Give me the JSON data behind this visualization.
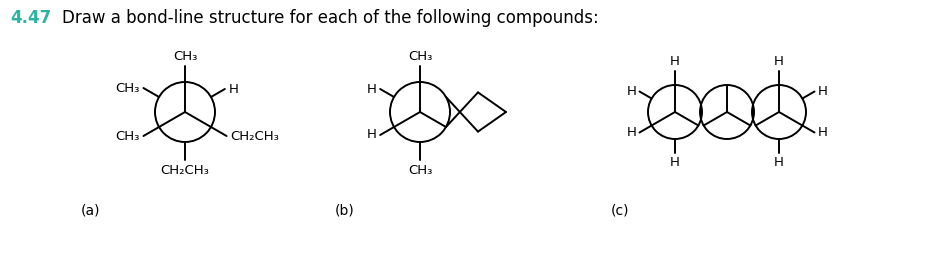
{
  "title_number": "4.47",
  "title_text": "Draw a bond-line structure for each of the following compounds:",
  "title_number_color": "#2bb5a0",
  "bg_color": "#ffffff",
  "label_a": "(a)",
  "label_b": "(b)",
  "label_c": "(c)",
  "fig_w": 9.42,
  "fig_h": 2.6,
  "dpi": 100
}
